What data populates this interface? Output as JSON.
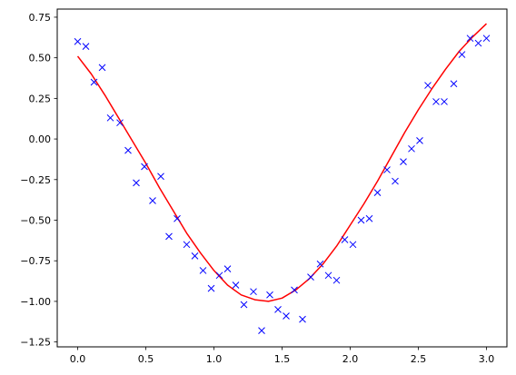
{
  "chart_data": {
    "type": "scatter",
    "title": "",
    "xlabel": "",
    "ylabel": "",
    "xlim": [
      -0.15,
      3.15
    ],
    "ylim": [
      -1.28,
      0.8
    ],
    "grid": false,
    "x_ticks": [
      0.0,
      0.5,
      1.0,
      1.5,
      2.0,
      2.5,
      3.0
    ],
    "x_tick_labels": [
      "0.0",
      "0.5",
      "1.0",
      "1.5",
      "2.0",
      "2.5",
      "3.0"
    ],
    "y_ticks": [
      0.75,
      0.5,
      0.25,
      0.0,
      -0.25,
      -0.5,
      -0.75,
      -1.0,
      -1.25
    ],
    "y_tick_labels": [
      "0.75",
      "0.50",
      "0.25",
      "0.00",
      "−0.25",
      "−0.50",
      "−0.75",
      "−1.00",
      "−1.25"
    ],
    "series": [
      {
        "kind": "scatter",
        "marker": "x",
        "color": "#0000ff",
        "points": [
          [
            0.0,
            0.6
          ],
          [
            0.06,
            0.57
          ],
          [
            0.12,
            0.35
          ],
          [
            0.18,
            0.44
          ],
          [
            0.24,
            0.13
          ],
          [
            0.31,
            0.1
          ],
          [
            0.37,
            -0.07
          ],
          [
            0.43,
            -0.27
          ],
          [
            0.49,
            -0.17
          ],
          [
            0.55,
            -0.38
          ],
          [
            0.61,
            -0.23
          ],
          [
            0.67,
            -0.6
          ],
          [
            0.73,
            -0.49
          ],
          [
            0.8,
            -0.65
          ],
          [
            0.86,
            -0.72
          ],
          [
            0.92,
            -0.81
          ],
          [
            0.98,
            -0.92
          ],
          [
            1.04,
            -0.84
          ],
          [
            1.1,
            -0.8
          ],
          [
            1.16,
            -0.9
          ],
          [
            1.22,
            -1.02
          ],
          [
            1.29,
            -0.94
          ],
          [
            1.35,
            -1.18
          ],
          [
            1.41,
            -0.96
          ],
          [
            1.47,
            -1.05
          ],
          [
            1.53,
            -1.09
          ],
          [
            1.59,
            -0.93
          ],
          [
            1.65,
            -1.11
          ],
          [
            1.71,
            -0.85
          ],
          [
            1.78,
            -0.77
          ],
          [
            1.84,
            -0.84
          ],
          [
            1.9,
            -0.87
          ],
          [
            1.96,
            -0.62
          ],
          [
            2.02,
            -0.65
          ],
          [
            2.08,
            -0.5
          ],
          [
            2.14,
            -0.49
          ],
          [
            2.2,
            -0.33
          ],
          [
            2.27,
            -0.19
          ],
          [
            2.33,
            -0.26
          ],
          [
            2.39,
            -0.14
          ],
          [
            2.45,
            -0.06
          ],
          [
            2.51,
            -0.01
          ],
          [
            2.57,
            0.33
          ],
          [
            2.63,
            0.23
          ],
          [
            2.69,
            0.23
          ],
          [
            2.76,
            0.34
          ],
          [
            2.82,
            0.52
          ],
          [
            2.88,
            0.62
          ],
          [
            2.94,
            0.59
          ],
          [
            3.0,
            0.62
          ]
        ]
      },
      {
        "kind": "line",
        "color": "#ff0000",
        "x": [
          0.0,
          0.1,
          0.2,
          0.3,
          0.4,
          0.5,
          0.6,
          0.7,
          0.8,
          0.9,
          1.0,
          1.1,
          1.2,
          1.3,
          1.4,
          1.5,
          1.6,
          1.7,
          1.8,
          1.9,
          2.0,
          2.1,
          2.2,
          2.3,
          2.4,
          2.5,
          2.6,
          2.7,
          2.8,
          2.9,
          3.0
        ],
        "y": [
          0.51,
          0.4,
          0.27,
          0.13,
          -0.01,
          -0.15,
          -0.3,
          -0.44,
          -0.58,
          -0.7,
          -0.81,
          -0.9,
          -0.96,
          -0.99,
          -1.0,
          -0.98,
          -0.93,
          -0.86,
          -0.77,
          -0.66,
          -0.53,
          -0.4,
          -0.26,
          -0.11,
          0.04,
          0.18,
          0.31,
          0.43,
          0.54,
          0.63,
          0.71
        ]
      }
    ]
  }
}
